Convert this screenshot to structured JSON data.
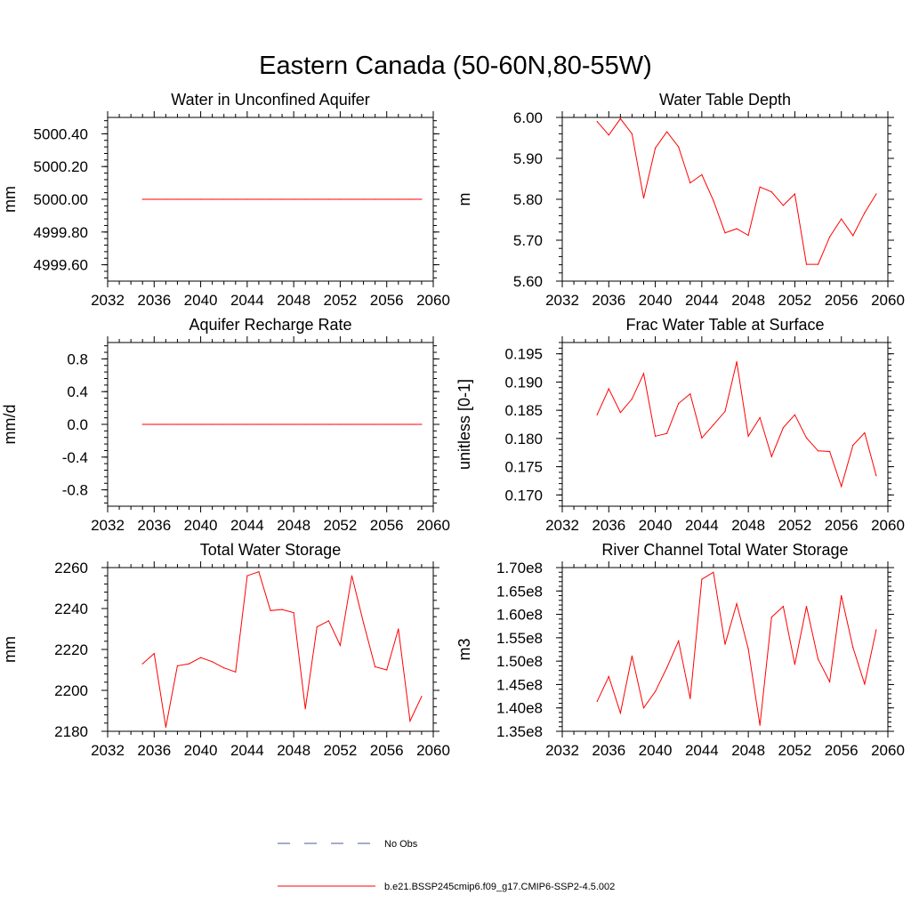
{
  "title": "Eastern Canada (50-60N,80-55W)",
  "legend": [
    {
      "label": "No Obs",
      "color": "#4a5a9a",
      "style": "dashed"
    },
    {
      "label": "b.e21.BSSP245cmip6.f09_g17.CMIP6-SSP2-4.5.002",
      "color": "#ff0000",
      "style": "solid"
    }
  ],
  "chart_data": [
    {
      "type": "line",
      "title": "Water in Unconfined Aquifer",
      "ylabel": "mm",
      "xlim": [
        2032,
        2060
      ],
      "ylim": [
        4999.5,
        5000.5
      ],
      "xticks": [
        2032,
        2036,
        2040,
        2044,
        2048,
        2052,
        2056,
        2060
      ],
      "yticks": [
        4999.6,
        4999.8,
        5000.0,
        5000.2,
        5000.4
      ],
      "ytick_labels": [
        "4999.60",
        "4999.80",
        "5000.00",
        "5000.20",
        "5000.40"
      ],
      "x": [
        2035,
        2036,
        2037,
        2038,
        2039,
        2040,
        2041,
        2042,
        2043,
        2044,
        2045,
        2046,
        2047,
        2048,
        2049,
        2050,
        2051,
        2052,
        2053,
        2054,
        2055,
        2056,
        2057,
        2058,
        2059
      ],
      "series": [
        {
          "color": "#ff0000",
          "values": [
            5000,
            5000,
            5000,
            5000,
            5000,
            5000,
            5000,
            5000,
            5000,
            5000,
            5000,
            5000,
            5000,
            5000,
            5000,
            5000,
            5000,
            5000,
            5000,
            5000,
            5000,
            5000,
            5000,
            5000,
            5000
          ]
        }
      ]
    },
    {
      "type": "line",
      "title": "Water Table Depth",
      "ylabel": "m",
      "xlim": [
        2032,
        2060
      ],
      "ylim": [
        5.6,
        6.0
      ],
      "xticks": [
        2032,
        2036,
        2040,
        2044,
        2048,
        2052,
        2056,
        2060
      ],
      "yticks": [
        5.6,
        5.7,
        5.8,
        5.9,
        6.0
      ],
      "ytick_labels": [
        "5.60",
        "5.70",
        "5.80",
        "5.90",
        "6.00"
      ],
      "x": [
        2035,
        2036,
        2037,
        2038,
        2039,
        2040,
        2041,
        2042,
        2043,
        2044,
        2045,
        2046,
        2047,
        2048,
        2049,
        2050,
        2051,
        2052,
        2053,
        2054,
        2055,
        2056,
        2057,
        2058,
        2059
      ],
      "series": [
        {
          "color": "#ff0000",
          "values": [
            5.99,
            5.957,
            5.997,
            5.96,
            5.803,
            5.925,
            5.965,
            5.928,
            5.84,
            5.86,
            5.797,
            5.718,
            5.728,
            5.712,
            5.83,
            5.818,
            5.785,
            5.813,
            5.641,
            5.641,
            5.708,
            5.752,
            5.711,
            5.767,
            5.813
          ]
        }
      ]
    },
    {
      "type": "line",
      "title": "Aquifer Recharge Rate",
      "ylabel": "mm/d",
      "xlim": [
        2032,
        2060
      ],
      "ylim": [
        -1.0,
        1.0
      ],
      "xticks": [
        2032,
        2036,
        2040,
        2044,
        2048,
        2052,
        2056,
        2060
      ],
      "yticks": [
        -0.8,
        -0.4,
        0.0,
        0.4,
        0.8
      ],
      "ytick_labels": [
        "-0.8",
        "-0.4",
        "0.0",
        "0.4",
        "0.8"
      ],
      "x": [
        2035,
        2036,
        2037,
        2038,
        2039,
        2040,
        2041,
        2042,
        2043,
        2044,
        2045,
        2046,
        2047,
        2048,
        2049,
        2050,
        2051,
        2052,
        2053,
        2054,
        2055,
        2056,
        2057,
        2058,
        2059
      ],
      "series": [
        {
          "color": "#ff0000",
          "values": [
            0,
            0,
            0,
            0,
            0,
            0,
            0,
            0,
            0,
            0,
            0,
            0,
            0,
            0,
            0,
            0,
            0,
            0,
            0,
            0,
            0,
            0,
            0,
            0,
            0
          ]
        }
      ]
    },
    {
      "type": "line",
      "title": "Frac Water Table at Surface",
      "ylabel": "unitless [0-1]",
      "xlim": [
        2032,
        2060
      ],
      "ylim": [
        0.168,
        0.197
      ],
      "xticks": [
        2032,
        2036,
        2040,
        2044,
        2048,
        2052,
        2056,
        2060
      ],
      "yticks": [
        0.17,
        0.175,
        0.18,
        0.185,
        0.19,
        0.195
      ],
      "ytick_labels": [
        "0.170",
        "0.175",
        "0.180",
        "0.185",
        "0.190",
        "0.195"
      ],
      "x": [
        2035,
        2036,
        2037,
        2038,
        2039,
        2040,
        2041,
        2042,
        2043,
        2044,
        2045,
        2046,
        2047,
        2048,
        2049,
        2050,
        2051,
        2052,
        2053,
        2054,
        2055,
        2056,
        2057,
        2058,
        2059
      ],
      "series": [
        {
          "color": "#ff0000",
          "values": [
            0.1842,
            0.1888,
            0.1846,
            0.187,
            0.1915,
            0.1804,
            0.1809,
            0.1862,
            0.1879,
            0.1801,
            0.1824,
            0.1848,
            0.1936,
            0.1804,
            0.1837,
            0.1768,
            0.1819,
            0.1842,
            0.1801,
            0.1778,
            0.1777,
            0.1715,
            0.1788,
            0.181,
            0.1734
          ]
        }
      ]
    },
    {
      "type": "line",
      "title": "Total Water Storage",
      "ylabel": "mm",
      "xlim": [
        2032,
        2060
      ],
      "ylim": [
        2180,
        2260
      ],
      "xticks": [
        2032,
        2036,
        2040,
        2044,
        2048,
        2052,
        2056,
        2060
      ],
      "yticks": [
        2180,
        2200,
        2220,
        2240,
        2260
      ],
      "ytick_labels": [
        "2180",
        "2200",
        "2220",
        "2240",
        "2260"
      ],
      "x": [
        2035,
        2036,
        2037,
        2038,
        2039,
        2040,
        2041,
        2042,
        2043,
        2044,
        2045,
        2046,
        2047,
        2048,
        2049,
        2050,
        2051,
        2052,
        2053,
        2054,
        2055,
        2056,
        2057,
        2058,
        2059
      ],
      "series": [
        {
          "color": "#ff0000",
          "values": [
            2213,
            2218,
            2182,
            2212,
            2213,
            2216,
            2214,
            2211,
            2209,
            2256,
            2258,
            2239,
            2239.5,
            2238,
            2191,
            2231,
            2234,
            2222,
            2256,
            2233,
            2211.5,
            2210,
            2230,
            2185,
            2197
          ]
        }
      ]
    },
    {
      "type": "line",
      "title": "River Channel Total Water Storage",
      "ylabel": "m3",
      "xlim": [
        2032,
        2060
      ],
      "ylim": [
        135000000,
        170000000
      ],
      "xticks": [
        2032,
        2036,
        2040,
        2044,
        2048,
        2052,
        2056,
        2060
      ],
      "yticks": [
        135000000,
        140000000,
        145000000,
        150000000,
        155000000,
        160000000,
        165000000,
        170000000
      ],
      "ytick_labels": [
        "1.35e8",
        "1.40e8",
        "1.45e8",
        "1.50e8",
        "1.55e8",
        "1.60e8",
        "1.65e8",
        "1.70e8"
      ],
      "x": [
        2035,
        2036,
        2037,
        2038,
        2039,
        2040,
        2041,
        2042,
        2043,
        2044,
        2045,
        2046,
        2047,
        2048,
        2049,
        2050,
        2051,
        2052,
        2053,
        2054,
        2055,
        2056,
        2057,
        2058,
        2059
      ],
      "series": [
        {
          "color": "#ff0000",
          "values": [
            141400000,
            146700000,
            138900000,
            151100000,
            140000000,
            143500000,
            148600000,
            154300000,
            142000000,
            167500000,
            169000000,
            153600000,
            162300000,
            152600000,
            136300000,
            159400000,
            161700000,
            149300000,
            161700000,
            150400000,
            145600000,
            164000000,
            152900000,
            145100000,
            156700000
          ]
        }
      ]
    }
  ]
}
